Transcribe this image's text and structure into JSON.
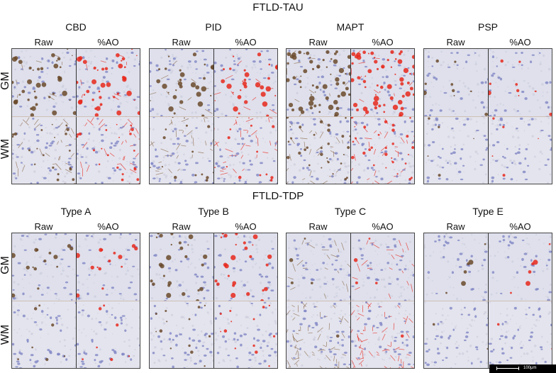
{
  "sections": [
    {
      "title": "FTLD-TAU",
      "row_labels": [
        "GM",
        "WM"
      ],
      "panels": [
        {
          "name": "CBD",
          "raw_label": "Raw",
          "ao_label": "%AO"
        },
        {
          "name": "PID",
          "raw_label": "Raw",
          "ao_label": "%AO"
        },
        {
          "name": "MAPT",
          "raw_label": "Raw",
          "ao_label": "%AO"
        },
        {
          "name": "PSP",
          "raw_label": "Raw",
          "ao_label": "%AO"
        }
      ]
    },
    {
      "title": "FTLD-TDP",
      "row_labels": [
        "GM",
        "WM"
      ],
      "panels": [
        {
          "name": "Type A",
          "raw_label": "Raw",
          "ao_label": "%AO"
        },
        {
          "name": "Type B",
          "raw_label": "Raw",
          "ao_label": "%AO"
        },
        {
          "name": "Type C",
          "raw_label": "Raw",
          "ao_label": "%AO"
        },
        {
          "name": "Type E",
          "raw_label": "Raw",
          "ao_label": "%AO"
        }
      ]
    }
  ],
  "scale_bar": {
    "label": "100μm"
  },
  "colors": {
    "tissue_background": "#dfe0ec",
    "hematoxylin_nuclei": "#7f86c4",
    "dab_stain": "#6b4a2c",
    "ao_overlay": "#e8281c"
  }
}
